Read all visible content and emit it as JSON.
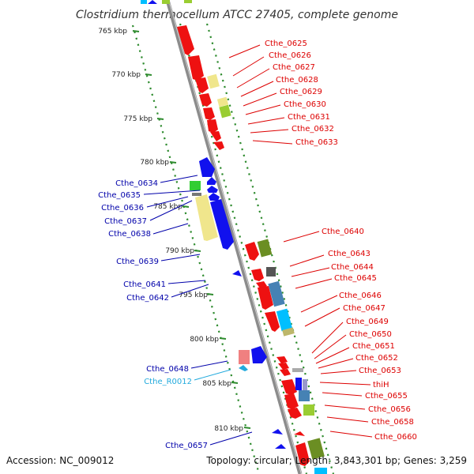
{
  "title": "Clostridium thermocellum ATCC 27405, complete genome",
  "footer": {
    "accession": "Accession: NC_009012",
    "topology": "Topology: circular; Length: 3,843,301 bp; Genes: 3,259"
  },
  "colors": {
    "backbone": "#8c8c8c",
    "tick": "#2e8b2e",
    "label_red": "#dd0000",
    "label_blue": "#0000aa",
    "label_cyan": "#22aadd",
    "gene_red": "#ee1111",
    "gene_blue": "#1111ee",
    "gene_khaki": "#f0e68c",
    "gene_green": "#9acd32",
    "gene_olive": "#6b8e23",
    "gene_gray": "#777777",
    "gene_steel": "#4682b4",
    "gene_cyan": "#00bfff",
    "gene_pink": "#f08080"
  },
  "kbp_ticks": [
    "765 kbp",
    "770 kbp",
    "775 kbp",
    "780 kbp",
    "785 kbp",
    "790 kbp",
    "795 kbp",
    "800 kbp",
    "805 kbp",
    "810 kbp"
  ],
  "genes_right": [
    "Cthe_0625",
    "Cthe_0626",
    "Cthe_0627",
    "Cthe_0628",
    "Cthe_0629",
    "Cthe_0630",
    "Cthe_0631",
    "Cthe_0632",
    "Cthe_0633",
    "Cthe_0640",
    "Cthe_0643",
    "Cthe_0644",
    "Cthe_0645",
    "Cthe_0646",
    "Cthe_0647",
    "Cthe_0649",
    "Cthe_0650",
    "Cthe_0651",
    "Cthe_0652",
    "Cthe_0653",
    "thiH",
    "Cthe_0655",
    "Cthe_0656",
    "Cthe_0658",
    "Cthe_0660"
  ],
  "genes_left": [
    "Cthe_0634",
    "Cthe_0635",
    "Cthe_0636",
    "Cthe_0637",
    "Cthe_0638",
    "Cthe_0639",
    "Cthe_0641",
    "Cthe_0642",
    "Cthe_0648",
    "Cthe_R0012",
    "Cthe_0657"
  ]
}
